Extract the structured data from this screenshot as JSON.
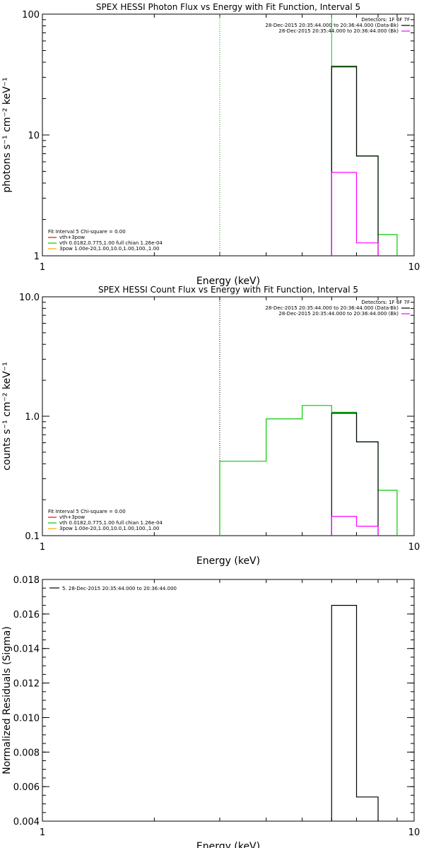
{
  "chart_data": [
    {
      "type": "line",
      "title": "SPEX HESSI Photon Flux vs Energy with Fit Function, Interval 5",
      "xlabel": "Energy (keV)",
      "ylabel": "photons s⁻¹ cm⁻² keV⁻¹",
      "xscale": "log",
      "yscale": "log",
      "xlim": [
        1,
        10
      ],
      "ylim": [
        1,
        100
      ],
      "xticks": [
        "1",
        "10"
      ],
      "yticks": [
        "1",
        "10",
        "100"
      ],
      "legend_top": {
        "title": "Detectors: 1F 6F 7F",
        "entries": [
          {
            "label": "28-Dec-2015 20:35:44.000 to 20:36:44.000 (Data-Bk)",
            "color": "#000000"
          },
          {
            "label": "28-Dec-2015 20:35:44.000 to 20:36:44.000 (Bk)",
            "color": "#ff00ff"
          }
        ]
      },
      "legend_bottom": {
        "title": "Fit Interval  5    Chi-square = 0.00",
        "entries": [
          {
            "label": "vth+3pow",
            "color": "#ff0000"
          },
          {
            "label": "vth 0.0182,0.775,1.00  full chian 1.26e-04",
            "color": "#00cc00"
          },
          {
            "label": "3pow 1.00e-20,1.00,10.0,1.00,100.,1.00",
            "color": "#ffa500"
          }
        ]
      },
      "vlines": [
        {
          "x": 3.0,
          "color": "#00aa00",
          "style": "dotted"
        },
        {
          "x": 6.0,
          "color": "#00cc00",
          "style": "solid"
        }
      ],
      "series": [
        {
          "color": "#00cc00",
          "edges": [
            6.0,
            7.0,
            8.0,
            9.0
          ],
          "values": [
            36.5,
            6.7,
            1.5
          ]
        },
        {
          "color": "#000000",
          "edges": [
            6.0,
            7.0,
            8.0
          ],
          "values": [
            37,
            6.7
          ]
        },
        {
          "color": "#ff00ff",
          "edges": [
            6.0,
            7.0,
            8.0
          ],
          "values": [
            4.9,
            1.28
          ]
        }
      ]
    },
    {
      "type": "line",
      "title": "SPEX HESSI Count Flux vs Energy with Fit Function, Interval 5",
      "xlabel": "Energy (keV)",
      "ylabel": "counts s⁻¹ cm⁻² keV⁻¹",
      "xscale": "log",
      "yscale": "log",
      "xlim": [
        1,
        10
      ],
      "ylim": [
        0.1,
        10
      ],
      "xticks": [
        "1",
        "10"
      ],
      "yticks": [
        "0.1",
        "1.0",
        "10.0"
      ],
      "legend_top": {
        "title": "Detectors: 1F 6F 7F",
        "entries": [
          {
            "label": "28-Dec-2015 20:35:44.000 to 20:36:44.000 (Data-Bk)",
            "color": "#000000"
          },
          {
            "label": "28-Dec-2015 20:35:44.000 to 20:36:44.000 (Bk)",
            "color": "#ff00ff"
          }
        ]
      },
      "legend_bottom": {
        "title": "Fit Interval  5    Chi-square = 0.00",
        "entries": [
          {
            "label": "vth+3pow",
            "color": "#ff0000"
          },
          {
            "label": "vth 0.0182,0.775,1.00  full chian 1.26e-04",
            "color": "#00cc00"
          },
          {
            "label": "3pow 1.00e-20,1.00,10.0,1.00,100.,1.00",
            "color": "#ffa500"
          }
        ]
      },
      "vlines": [
        {
          "x": 3.0,
          "color": "#000000",
          "style": "dotted"
        }
      ],
      "series": [
        {
          "color": "#00cc00",
          "edges": [
            3.0,
            4.0,
            5.0,
            6.0,
            7.0,
            8.0,
            9.0
          ],
          "values": [
            0.42,
            0.95,
            1.23,
            1.08,
            0.61,
            0.24
          ]
        },
        {
          "color": "#000000",
          "edges": [
            6.0,
            7.0,
            8.0
          ],
          "values": [
            1.06,
            0.61
          ]
        },
        {
          "color": "#ff00ff",
          "edges": [
            6.0,
            7.0,
            8.0
          ],
          "values": [
            0.145,
            0.12
          ]
        }
      ]
    },
    {
      "type": "line",
      "title": "",
      "xlabel": "Energy (keV)",
      "ylabel": "Normalized Residuals (Sigma)",
      "xscale": "log",
      "yscale": "linear",
      "xlim": [
        1,
        10
      ],
      "ylim": [
        0.004,
        0.018
      ],
      "xticks": [
        "1",
        "10"
      ],
      "yticks": [
        "0.004",
        "0.006",
        "0.008",
        "0.010",
        "0.012",
        "0.014",
        "0.016",
        "0.018"
      ],
      "legend_top": {
        "title": "",
        "entries": [
          {
            "label": "5. 28-Dec-2015 20:35:44.000 to 20:36:44.000",
            "color": "#000000"
          }
        ]
      },
      "series": [
        {
          "color": "#000000",
          "edges": [
            6.0,
            7.0,
            8.0
          ],
          "values": [
            0.0165,
            0.0054
          ]
        }
      ]
    }
  ]
}
